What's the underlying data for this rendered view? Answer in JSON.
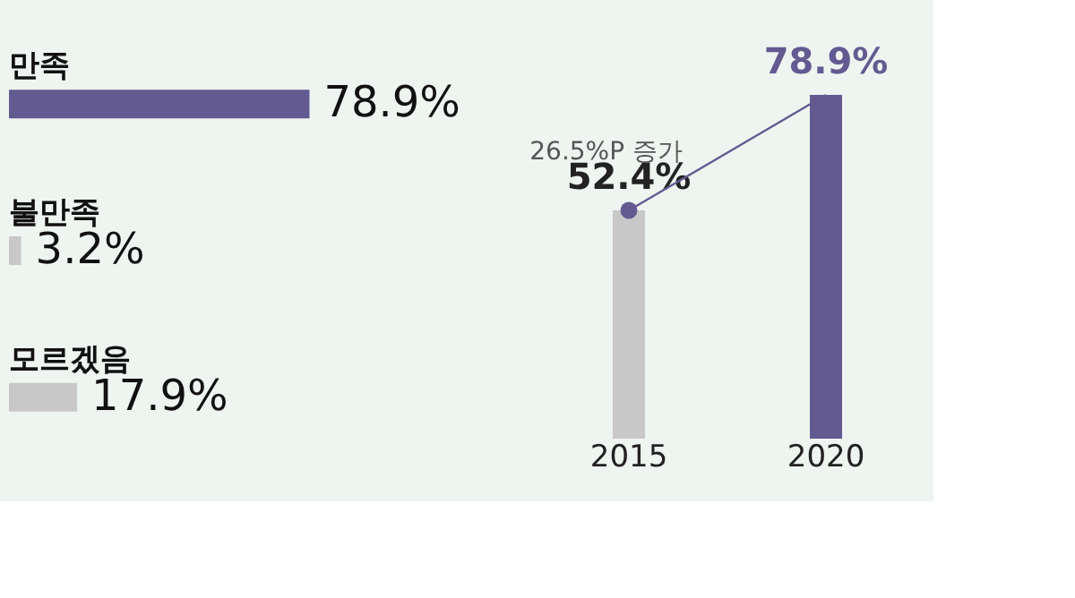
{
  "chart_data": [
    {
      "type": "bar",
      "orientation": "horizontal",
      "categories": [
        "만족",
        "불만족",
        "모르겠음"
      ],
      "values": [
        78.9,
        3.2,
        17.9
      ],
      "colors": [
        "#635a91",
        "#c8c8c8",
        "#c8c8c8"
      ],
      "value_labels": [
        "78.9%",
        "3.2%",
        "17.9%"
      ]
    },
    {
      "type": "bar",
      "categories": [
        "2015",
        "2020"
      ],
      "values": [
        52.4,
        78.9
      ],
      "colors": [
        "#c8c8c8",
        "#635a91"
      ],
      "value_labels": [
        "52.4%",
        "78.9%"
      ],
      "annotations": [
        "26.5%P 증가"
      ],
      "tick_labels": "x"
    }
  ]
}
